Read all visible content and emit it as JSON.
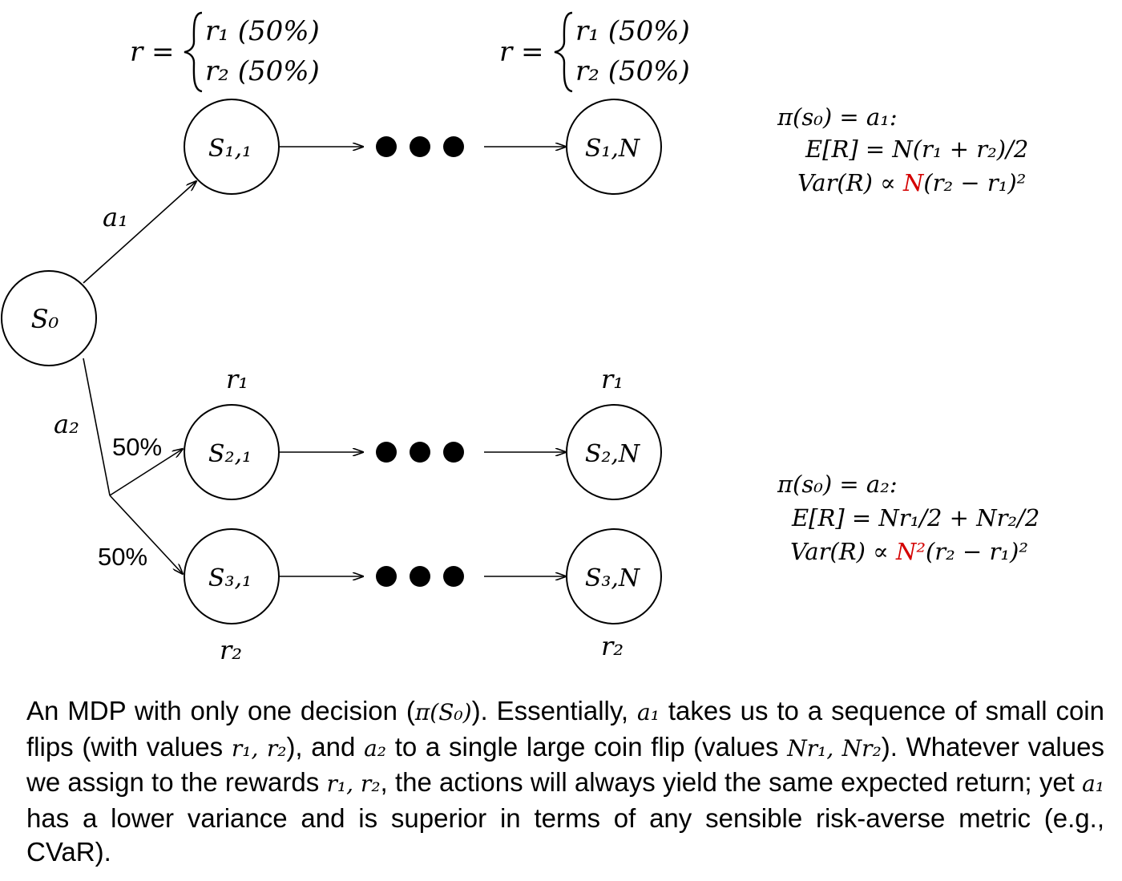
{
  "reward_distribution": {
    "lhs": "r =",
    "cases": [
      "r₁ (50%)",
      "r₂ (50%)"
    ]
  },
  "nodes": {
    "s0": "S₀",
    "s11": "S₁,₁",
    "s1n": "S₁,N",
    "s21": "S₂,₁",
    "s2n": "S₂,N",
    "s31": "S₃,₁",
    "s3n": "S₃,N"
  },
  "edge_labels": {
    "a1": "a₁",
    "a2": "a₂",
    "prob_upper": "50%",
    "prob_lower": "50%"
  },
  "rewards": {
    "branch2_top": "r₁",
    "branch2_end": "r₁",
    "branch3_bottom": "r₂",
    "branch3_end": "r₂"
  },
  "policy_a1": {
    "header": "π(s₀) = a₁:",
    "expectation": "E[R] = N(r₁ + r₂)/2",
    "variance_pre": "Var(R) ∝ ",
    "variance_highlight": "N",
    "variance_post": "(r₂ − r₁)²"
  },
  "policy_a2": {
    "header": "π(s₀) = a₂:",
    "expectation": "E[R] = Nr₁/2 + Nr₂/2",
    "variance_pre": "Var(R) ∝ ",
    "variance_highlight": "N²",
    "variance_post": "(r₂ − r₁)²"
  },
  "caption": {
    "p1": "An MDP with only one decision (",
    "m_pi": "π(S₀)",
    "p2": "). Essentially, ",
    "m_a1": "a₁",
    "p3": " takes us to a sequence of small coin flips (with values ",
    "m_r1r2": "r₁, r₂",
    "p4": "), and ",
    "m_a2": "a₂",
    "p5": " to a single large coin flip (values ",
    "m_nr": "Nr₁, Nr₂",
    "p6": "). Whatever values we assign to the rewards ",
    "m_r1r2b": "r₁, r₂",
    "p7": ", the actions will always yield the same expected return; yet ",
    "m_a1b": "a₁",
    "p8": " has a lower variance and is superior in terms of any sensible risk-averse metric (e.g., CVaR)."
  },
  "colors": {
    "highlight": "#d40000",
    "ink": "#000000"
  }
}
